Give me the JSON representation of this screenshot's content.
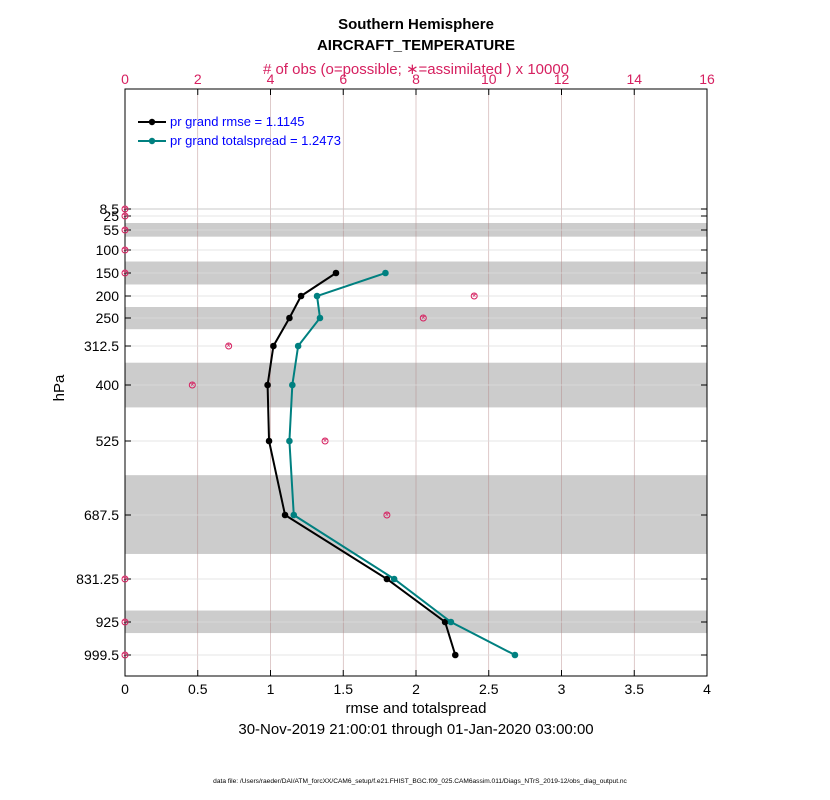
{
  "chart_data": {
    "type": "line",
    "title": "Southern Hemisphere",
    "subtitle": "AIRCRAFT_TEMPERATURE",
    "top_axis_label": "# of obs (o=possible; ∗=assimilated ) x 10000",
    "xlabel": "rmse and totalspread",
    "ylabel": "hPa",
    "date_range": "30-Nov-2019 21:00:01 through 01-Jan-2020 03:00:00",
    "footnote": "data file: /Users/raeder/DAI/ATM_forcXX/CAM6_setup/f.e21.FHIST_BGC.f09_025.CAM6assim.011/Diags_NTrS_2019-12/obs_diag_output.nc",
    "xlim": [
      0,
      4
    ],
    "x_ticks": [
      "0",
      "0.5",
      "1",
      "1.5",
      "2",
      "2.5",
      "3",
      "3.5",
      "4"
    ],
    "top_xlim": [
      0,
      16
    ],
    "top_ticks": [
      "0",
      "2",
      "4",
      "6",
      "8",
      "10",
      "12",
      "14",
      "16"
    ],
    "levels": [
      8.5,
      25,
      55,
      100,
      150,
      200,
      250,
      312.5,
      400,
      525,
      687.5,
      831.25,
      925,
      999.5
    ],
    "level_labels": [
      "8.5",
      "25",
      "55",
      "100",
      "150",
      "200",
      "250",
      "312.5",
      "400",
      "525",
      "687.5",
      "831.25",
      "925",
      "999.5"
    ],
    "shaded_bands": [
      [
        7,
        10
      ],
      [
        40,
        70
      ],
      [
        125,
        175
      ],
      [
        225,
        275
      ],
      [
        350,
        450
      ],
      [
        600,
        775
      ],
      [
        900,
        950
      ]
    ],
    "colors": {
      "rmse": "#000000",
      "spread": "#008080",
      "obs": "#d62060",
      "legend_text": "#0000ff",
      "band": "#cccccc",
      "grid": "#b08080"
    },
    "series": [
      {
        "name": "pr grand rmse = 1.1145",
        "key": "rmse",
        "levels": [
          150,
          200,
          250,
          312.5,
          400,
          525,
          687.5,
          831.25,
          925,
          999.5
        ],
        "values": [
          1.45,
          1.21,
          1.13,
          1.02,
          0.98,
          0.99,
          1.1,
          1.8,
          2.2,
          2.27
        ]
      },
      {
        "name": "pr grand totalspread = 1.2473",
        "key": "spread",
        "levels": [
          150,
          200,
          250,
          312.5,
          400,
          525,
          687.5,
          831.25,
          925,
          999.5
        ],
        "values": [
          1.79,
          1.32,
          1.34,
          1.19,
          1.15,
          1.13,
          1.16,
          1.85,
          2.24,
          2.68
        ]
      }
    ],
    "obs_counts": {
      "levels": [
        8.5,
        25,
        55,
        100,
        150,
        200,
        250,
        312.5,
        400,
        525,
        687.5,
        831.25,
        925,
        999.5
      ],
      "possible": [
        0,
        0,
        0,
        0,
        0,
        9.6,
        8.2,
        2.85,
        1.85,
        5.5,
        7.2,
        0,
        0,
        0
      ],
      "assimilated": [
        0,
        0,
        0,
        0,
        0,
        9.6,
        8.2,
        2.85,
        1.85,
        5.5,
        7.2,
        0,
        0,
        0
      ]
    }
  }
}
